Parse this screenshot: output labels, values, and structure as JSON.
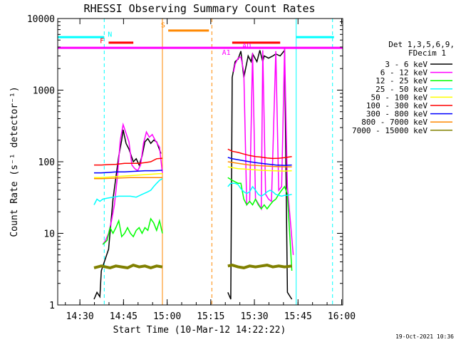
{
  "chart_data": {
    "type": "line",
    "title": "RHESSI Observing Summary Count Rates",
    "xlabel": "Start Time (10-Mar-12 14:22:22)",
    "ylabel": "Count Rate (s⁻¹ detector⁻¹)",
    "yscale": "log",
    "ylim": [
      1,
      10000
    ],
    "xlim_minutes": [
      0,
      98
    ],
    "x_ticks": [
      {
        "t": 7.63,
        "label": "14:30"
      },
      {
        "t": 22.63,
        "label": "14:45"
      },
      {
        "t": 37.63,
        "label": "15:00"
      },
      {
        "t": 52.63,
        "label": "15:15"
      },
      {
        "t": 67.63,
        "label": "15:30"
      },
      {
        "t": 82.63,
        "label": "15:45"
      },
      {
        "t": 97.63,
        "label": "16:00"
      }
    ],
    "y_ticks": [
      {
        "v": 1,
        "label": "1"
      },
      {
        "v": 10,
        "label": "10"
      },
      {
        "v": 100,
        "label": "100"
      },
      {
        "v": 1000,
        "label": "1000"
      },
      {
        "v": 10000,
        "label": "10000"
      }
    ],
    "legend_title": [
      "Det 1,3,5,6,9,",
      "FDecim 1"
    ],
    "series": [
      {
        "name": "3 - 6 keV",
        "color": "#000000",
        "points": [
          [
            12.5,
            1.2
          ],
          [
            13.5,
            1.5
          ],
          [
            14.5,
            1.3
          ],
          [
            15.0,
            3
          ],
          [
            17.5,
            6
          ],
          [
            19,
            30
          ],
          [
            20,
            60
          ],
          [
            21,
            120
          ],
          [
            22,
            200
          ],
          [
            22.5,
            280
          ],
          [
            23.5,
            180
          ],
          [
            24.5,
            150
          ],
          [
            26,
            100
          ],
          [
            27,
            110
          ],
          [
            28,
            90
          ],
          [
            29,
            120
          ],
          [
            30,
            190
          ],
          [
            31,
            210
          ],
          [
            32,
            180
          ],
          [
            33,
            200
          ],
          [
            34,
            190
          ],
          [
            35.5,
            130
          ],
          [
            58.5,
            1.5
          ],
          [
            59.5,
            1.2
          ],
          [
            60,
            1500
          ],
          [
            61,
            2500
          ],
          [
            62,
            2700
          ],
          [
            63,
            3500
          ],
          [
            64,
            1500
          ],
          [
            65.5,
            3000
          ],
          [
            66.5,
            2500
          ],
          [
            67,
            3200
          ],
          [
            68.5,
            2500
          ],
          [
            69.5,
            3600
          ],
          [
            70.5,
            2500
          ],
          [
            71,
            3000
          ],
          [
            72.5,
            2800
          ],
          [
            74,
            3000
          ],
          [
            75,
            3200
          ],
          [
            76.5,
            3000
          ],
          [
            78,
            3600
          ],
          [
            79,
            1.5
          ],
          [
            80.5,
            1.2
          ]
        ]
      },
      {
        "name": "6 - 12 keV",
        "color": "#ff00ff",
        "points": [
          [
            15.5,
            7
          ],
          [
            16.5,
            8
          ],
          [
            17.5,
            10
          ],
          [
            18.5,
            15
          ],
          [
            19.5,
            25
          ],
          [
            20.5,
            60
          ],
          [
            21.5,
            200
          ],
          [
            22.5,
            330
          ],
          [
            23.5,
            250
          ],
          [
            24.5,
            190
          ],
          [
            25.5,
            90
          ],
          [
            26.5,
            80
          ],
          [
            27.5,
            75
          ],
          [
            28.5,
            90
          ],
          [
            29.5,
            180
          ],
          [
            30.5,
            260
          ],
          [
            31.5,
            220
          ],
          [
            32.5,
            240
          ],
          [
            33.5,
            200
          ],
          [
            35,
            160
          ],
          [
            36,
            70
          ],
          [
            60.5,
            1800
          ],
          [
            61,
            2300
          ],
          [
            62,
            2800
          ],
          [
            63,
            2900
          ],
          [
            64,
            1800
          ],
          [
            65,
            25
          ],
          [
            66,
            28
          ],
          [
            67,
            3300
          ],
          [
            68,
            30
          ],
          [
            69,
            26
          ],
          [
            70,
            22
          ],
          [
            70.5,
            3600
          ],
          [
            71.5,
            35
          ],
          [
            72.5,
            30
          ],
          [
            73.5,
            28
          ],
          [
            75,
            3500
          ],
          [
            76,
            40
          ],
          [
            77,
            45
          ],
          [
            78,
            3800
          ],
          [
            79,
            45
          ],
          [
            81,
            5
          ]
        ]
      },
      {
        "name": "12 - 25 keV",
        "color": "#00ff00",
        "points": [
          [
            15.5,
            7
          ],
          [
            17,
            8
          ],
          [
            18,
            12
          ],
          [
            19,
            10
          ],
          [
            20,
            12
          ],
          [
            21,
            15
          ],
          [
            22,
            9
          ],
          [
            23,
            10
          ],
          [
            24,
            12
          ],
          [
            25,
            10
          ],
          [
            26,
            9
          ],
          [
            27,
            11
          ],
          [
            28,
            12
          ],
          [
            29,
            10
          ],
          [
            30,
            12
          ],
          [
            31,
            11
          ],
          [
            32,
            16
          ],
          [
            33,
            14
          ],
          [
            34,
            11
          ],
          [
            35,
            15
          ],
          [
            36,
            10
          ],
          [
            58.5,
            60
          ],
          [
            60,
            55
          ],
          [
            62,
            50
          ],
          [
            63,
            50
          ],
          [
            64,
            30
          ],
          [
            65,
            25
          ],
          [
            66,
            28
          ],
          [
            67,
            25
          ],
          [
            68,
            30
          ],
          [
            69,
            25
          ],
          [
            70,
            22
          ],
          [
            71,
            25
          ],
          [
            72,
            22
          ],
          [
            73,
            25
          ],
          [
            74,
            28
          ],
          [
            75,
            30
          ],
          [
            76,
            35
          ],
          [
            77,
            40
          ],
          [
            78,
            45
          ],
          [
            79,
            35
          ],
          [
            80.5,
            3
          ]
        ]
      },
      {
        "name": "25 - 50 keV",
        "color": "#00ffff",
        "points": [
          [
            12.5,
            25
          ],
          [
            13.5,
            30
          ],
          [
            14.5,
            28
          ],
          [
            15.5,
            30
          ],
          [
            17,
            31
          ],
          [
            19,
            32
          ],
          [
            21,
            33
          ],
          [
            23,
            33
          ],
          [
            25,
            33
          ],
          [
            27,
            32
          ],
          [
            29,
            35
          ],
          [
            31,
            38
          ],
          [
            32,
            40
          ],
          [
            33,
            45
          ],
          [
            34,
            50
          ],
          [
            35,
            55
          ],
          [
            36,
            58
          ],
          [
            58.5,
            45
          ],
          [
            59.5,
            50
          ],
          [
            61,
            50
          ],
          [
            62,
            48
          ],
          [
            63,
            42
          ],
          [
            64,
            38
          ],
          [
            65,
            36
          ],
          [
            66,
            38
          ],
          [
            67,
            45
          ],
          [
            68,
            40
          ],
          [
            69,
            35
          ],
          [
            70,
            33
          ],
          [
            71,
            35
          ],
          [
            72,
            38
          ],
          [
            73,
            40
          ],
          [
            74,
            38
          ],
          [
            75,
            35
          ],
          [
            76,
            34
          ],
          [
            77,
            33
          ],
          [
            78,
            34
          ],
          [
            79,
            34
          ],
          [
            80.5,
            35
          ]
        ]
      },
      {
        "name": "50 - 100 keV",
        "color": "#ffff00",
        "points": [
          [
            12.5,
            60
          ],
          [
            15,
            60
          ],
          [
            20,
            62
          ],
          [
            25,
            64
          ],
          [
            30,
            66
          ],
          [
            35,
            68
          ],
          [
            36,
            68
          ],
          [
            58.5,
            85
          ],
          [
            62,
            80
          ],
          [
            66,
            78
          ],
          [
            70,
            76
          ],
          [
            74,
            75
          ],
          [
            78,
            74
          ],
          [
            80.5,
            75
          ]
        ]
      },
      {
        "name": "100 - 300 keV",
        "color": "#ff0000",
        "points": [
          [
            12.5,
            90
          ],
          [
            15,
            90
          ],
          [
            17,
            91
          ],
          [
            20,
            92
          ],
          [
            23,
            95
          ],
          [
            25,
            95
          ],
          [
            28,
            95
          ],
          [
            30,
            97
          ],
          [
            32,
            100
          ],
          [
            34,
            110
          ],
          [
            36,
            112
          ],
          [
            58.5,
            150
          ],
          [
            60,
            140
          ],
          [
            62,
            135
          ],
          [
            64,
            128
          ],
          [
            66,
            122
          ],
          [
            68,
            118
          ],
          [
            70,
            116
          ],
          [
            72,
            113
          ],
          [
            74,
            111
          ],
          [
            76,
            112
          ],
          [
            78,
            114
          ],
          [
            80.5,
            118
          ]
        ]
      },
      {
        "name": "300 - 800 keV",
        "color": "#0000ff",
        "points": [
          [
            12.5,
            70
          ],
          [
            15,
            70
          ],
          [
            18,
            71
          ],
          [
            20,
            72
          ],
          [
            23,
            72
          ],
          [
            25,
            73
          ],
          [
            28,
            74
          ],
          [
            30,
            75
          ],
          [
            33,
            75
          ],
          [
            36,
            76
          ],
          [
            58.5,
            115
          ],
          [
            60,
            110
          ],
          [
            63,
            105
          ],
          [
            66,
            100
          ],
          [
            69,
            96
          ],
          [
            72,
            93
          ],
          [
            75,
            90
          ],
          [
            78,
            89
          ],
          [
            80.5,
            90
          ]
        ]
      },
      {
        "name": "800 - 7000 keV",
        "color": "#ff8800",
        "points": [
          [
            12.5,
            58
          ],
          [
            15,
            58
          ],
          [
            20,
            59
          ],
          [
            25,
            60
          ],
          [
            30,
            60
          ],
          [
            36,
            60
          ],
          [
            58.5,
            100
          ],
          [
            62,
            95
          ],
          [
            66,
            90
          ],
          [
            70,
            88
          ],
          [
            74,
            86
          ],
          [
            78,
            85
          ],
          [
            80.5,
            85
          ]
        ]
      },
      {
        "name": "7000 - 15000 keV",
        "color": "#808000",
        "points": [
          [
            12.5,
            3.3
          ],
          [
            15,
            3.5
          ],
          [
            18,
            3.3
          ],
          [
            20,
            3.5
          ],
          [
            22,
            3.4
          ],
          [
            24,
            3.3
          ],
          [
            26,
            3.6
          ],
          [
            28,
            3.4
          ],
          [
            30,
            3.5
          ],
          [
            32,
            3.3
          ],
          [
            34,
            3.5
          ],
          [
            36,
            3.4
          ],
          [
            58.5,
            3.5
          ],
          [
            60,
            3.6
          ],
          [
            62,
            3.4
          ],
          [
            64,
            3.3
          ],
          [
            66,
            3.5
          ],
          [
            68,
            3.4
          ],
          [
            70,
            3.5
          ],
          [
            72,
            3.6
          ],
          [
            74,
            3.4
          ],
          [
            76,
            3.5
          ],
          [
            78,
            3.4
          ],
          [
            80.5,
            3.5
          ]
        ]
      }
    ],
    "status_bars": [
      {
        "label": "N",
        "color": "#00ffff",
        "segments": [
          [
            0,
            16
          ],
          [
            82,
            95
          ]
        ],
        "level": 5500
      },
      {
        "label": "F",
        "color": "#ff0000",
        "segments": [
          [
            17.5,
            26
          ],
          [
            60,
            76.5
          ]
        ],
        "level": 4600
      },
      {
        "label": "S",
        "color": "#ff8800",
        "segments": [
          [
            38,
            52
          ]
        ],
        "level": 6800
      },
      {
        "label": "",
        "color": "#ff00ff",
        "segments": [
          [
            0,
            98
          ]
        ],
        "level": 3900
      }
    ],
    "small_labels": [
      {
        "label": "N",
        "color": "#00ffff",
        "t": 17.2,
        "v": 5600
      },
      {
        "label": "F",
        "color": "#ff0000",
        "t": 14.5,
        "v": 4550
      },
      {
        "label": "S",
        "color": "#ff8800",
        "t": 35.5,
        "v": 7500
      },
      {
        "label": "A1",
        "color": "#ff00ff",
        "t": 56.5,
        "v": 3100
      },
      {
        "label": "AQ",
        "color": "#ff00ff",
        "t": 63.5,
        "v": 3850
      }
    ],
    "vlines": [
      {
        "t": 16.0,
        "color": "#00ffff",
        "style": "dashed"
      },
      {
        "t": 36.0,
        "color": "#ff8800",
        "style": "solid"
      },
      {
        "t": 53.0,
        "color": "#ff8800",
        "style": "dashed"
      },
      {
        "t": 82.0,
        "color": "#00ffff",
        "style": "solid"
      },
      {
        "t": 94.5,
        "color": "#00ffff",
        "style": "dashed"
      },
      {
        "t": 0.0,
        "color": "#00ffff",
        "style": "solid"
      }
    ],
    "grid": false,
    "legend_placement": "right"
  },
  "footer": {
    "timestamp": "19-Oct-2021 10:36"
  }
}
